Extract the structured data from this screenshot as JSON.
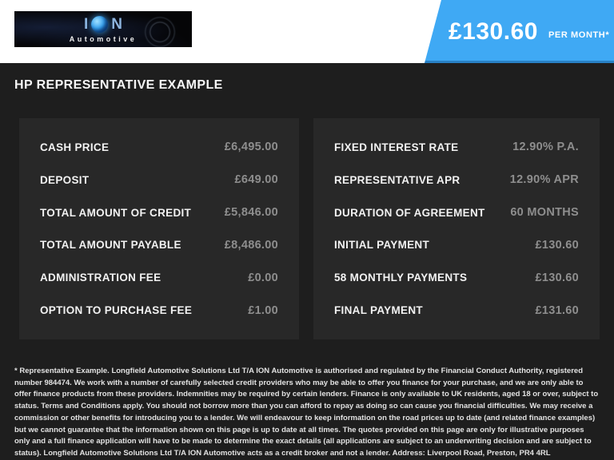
{
  "brand": {
    "name_left": "I",
    "name_right": "N",
    "subtitle": "Automotive"
  },
  "price_banner": {
    "amount": "£130.60",
    "per_label": "PER MONTH*"
  },
  "title": "HP REPRESENTATIVE EXAMPLE",
  "panels": {
    "left": {
      "rows": [
        {
          "label": "CASH PRICE",
          "value": "£6,495.00"
        },
        {
          "label": "DEPOSIT",
          "value": "£649.00"
        },
        {
          "label": "TOTAL AMOUNT OF CREDIT",
          "value": "£5,846.00"
        },
        {
          "label": "TOTAL AMOUNT PAYABLE",
          "value": "£8,486.00"
        },
        {
          "label": "ADMINISTRATION FEE",
          "value": "£0.00"
        },
        {
          "label": "OPTION TO PURCHASE FEE",
          "value": "£1.00"
        }
      ]
    },
    "right": {
      "rows": [
        {
          "label": "FIXED INTEREST RATE",
          "value": "12.90% P.A."
        },
        {
          "label": "REPRESENTATIVE APR",
          "value": "12.90% APR"
        },
        {
          "label": "DURATION OF AGREEMENT",
          "value": "60 MONTHS"
        },
        {
          "label": "INITIAL PAYMENT",
          "value": "£130.60"
        },
        {
          "label": "58 MONTHLY PAYMENTS",
          "value": "£130.60"
        },
        {
          "label": "FINAL PAYMENT",
          "value": "£131.60"
        }
      ]
    }
  },
  "disclaimer": "* Representative Example. Longfield Automotive Solutions Ltd T/A ION Automotive is authorised and regulated by the Financial Conduct Authority, registered number 984474. We work with a number of carefully selected credit providers who may be able to offer you finance for your purchase, and we are only able to offer finance products from these providers. Indemnities may be required by certain lenders. Finance is only available to UK residents, aged 18 or over, subject to status. Terms and Conditions apply. You should not borrow more than you can afford to repay as doing so can cause you financial difficulties. We may receive a commission or other benefits for introducing you to a lender. We will endeavour to keep information on the road prices up to date (and related finance examples) but we cannot guarantee that the information shown on this page is up to date at all times. The quotes provided on this page are only for illustrative purposes only and a full finance application will have to be made to determine the exact details (all applications are subject to an underwriting decision and are subject to status). Longfield Automotive Solutions Ltd T/A ION Automotive acts as a credit broker and not a lender. Address: Liverpool Road, Preston, PR4 4RL",
  "colors": {
    "accent_blue": "#3fa9f4",
    "accent_blue_edge": "#2e86c8",
    "page_background": "#1e1e1e",
    "panel_background": "#282828",
    "label_text": "#f2f2f2",
    "value_text": "#8e8e8e",
    "top_strip": "#ffffff"
  }
}
